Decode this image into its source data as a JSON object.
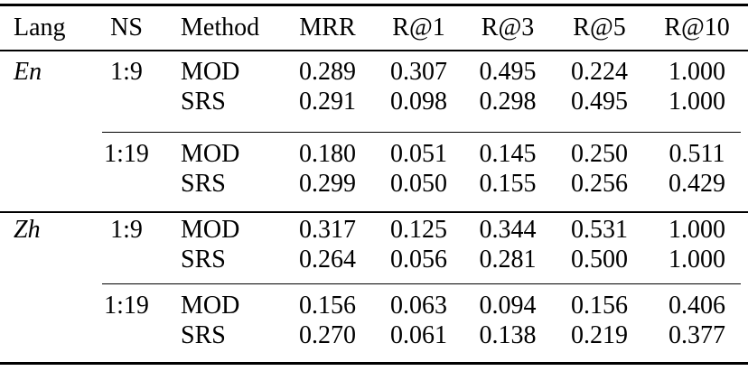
{
  "table": {
    "columns": [
      "Lang",
      "NS",
      "Method",
      "MRR",
      "R@1",
      "R@3",
      "R@5",
      "R@10"
    ],
    "rows": [
      {
        "lang": "En",
        "ns": "1:9",
        "method": "MOD",
        "mrr": "0.289",
        "r_at_1": "0.307",
        "r_at_3": "0.495",
        "r_at_5": "0.224",
        "r_at_10": "1.000"
      },
      {
        "lang": "",
        "ns": "",
        "method": "SRS",
        "mrr": "0.291",
        "r_at_1": "0.098",
        "r_at_3": "0.298",
        "r_at_5": "0.495",
        "r_at_10": "1.000"
      },
      {
        "lang": "",
        "ns": "1:19",
        "method": "MOD",
        "mrr": "0.180",
        "r_at_1": "0.051",
        "r_at_3": "0.145",
        "r_at_5": "0.250",
        "r_at_10": "0.511"
      },
      {
        "lang": "",
        "ns": "",
        "method": "SRS",
        "mrr": "0.299",
        "r_at_1": "0.050",
        "r_at_3": "0.155",
        "r_at_5": "0.256",
        "r_at_10": "0.429"
      },
      {
        "lang": "Zh",
        "ns": "1:9",
        "method": "MOD",
        "mrr": "0.317",
        "r_at_1": "0.125",
        "r_at_3": "0.344",
        "r_at_5": "0.531",
        "r_at_10": "1.000"
      },
      {
        "lang": "",
        "ns": "",
        "method": "SRS",
        "mrr": "0.264",
        "r_at_1": "0.056",
        "r_at_3": "0.281",
        "r_at_5": "0.500",
        "r_at_10": "1.000"
      },
      {
        "lang": "",
        "ns": "1:19",
        "method": "MOD",
        "mrr": "0.156",
        "r_at_1": "0.063",
        "r_at_3": "0.094",
        "r_at_5": "0.156",
        "r_at_10": "0.406"
      },
      {
        "lang": "",
        "ns": "",
        "method": "SRS",
        "mrr": "0.270",
        "r_at_1": "0.061",
        "r_at_3": "0.138",
        "r_at_5": "0.219",
        "r_at_10": "0.377"
      }
    ]
  },
  "colors": {
    "text": "#000000",
    "background": "#ffffff",
    "rule": "#000000"
  }
}
